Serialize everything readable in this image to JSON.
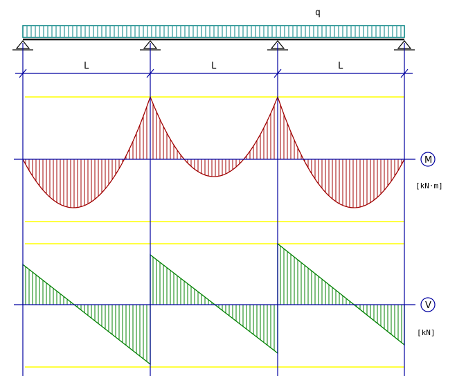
{
  "load": {
    "label": "q",
    "color": "#008080"
  },
  "spans": [
    {
      "label": "L"
    },
    {
      "label": "L"
    },
    {
      "label": "L"
    }
  ],
  "moment_diagram": {
    "symbol": "M",
    "unit": "[kN·m]",
    "fill_color": "#a00000"
  },
  "shear_diagram": {
    "symbol": "V",
    "unit": "[kN]",
    "fill_color": "#008000"
  },
  "colors": {
    "structure": "#0000a0",
    "limit_lines": "#ffff00",
    "support": "#000000"
  }
}
